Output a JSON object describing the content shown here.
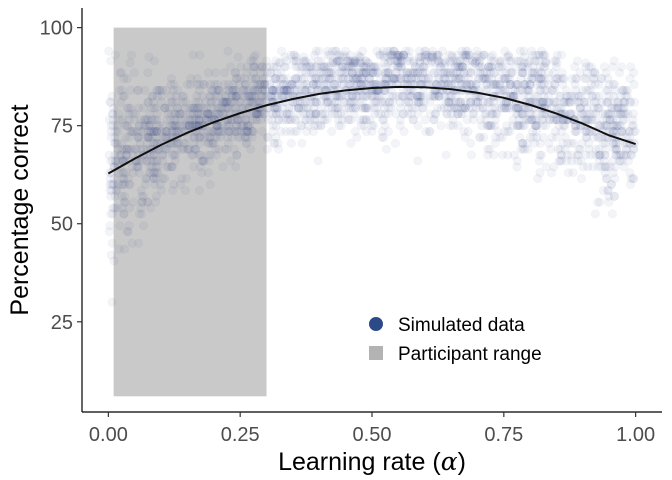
{
  "chart_data": {
    "type": "scatter",
    "title": "",
    "xlabel": "Learning rate (",
    "xlabel_symbol": "α",
    "xlabel_suffix": ")",
    "ylabel": "Percentage correct",
    "xlim": [
      -0.05,
      1.05
    ],
    "ylim": [
      2,
      105
    ],
    "x_ticks": [
      0,
      0.25,
      0.5,
      0.75,
      1
    ],
    "x_tick_labels": [
      "0.00",
      "0.25",
      "0.50",
      "0.75",
      "1.00"
    ],
    "y_ticks": [
      25,
      50,
      75,
      100
    ],
    "y_tick_labels": [
      "25",
      "50",
      "75",
      "100"
    ],
    "grid": false,
    "legend_position": "bottom-right",
    "colors": {
      "simulated": "#2b4a87",
      "participant": "#c9c9c9",
      "participant_legend": "#b3b3b3",
      "fit": "#111111"
    },
    "participant_range": {
      "name": "Participant range",
      "x": [
        0.01,
        0.3
      ],
      "y": [
        6,
        100
      ]
    },
    "simulated": {
      "name": "Simulated data",
      "x_range": [
        0,
        1
      ],
      "y_levels_step": 1.5,
      "y_max": 94,
      "point_alpha": 0.06
    },
    "fit_curve": {
      "points": [
        [
          0.0,
          62.8
        ],
        [
          0.05,
          66.6
        ],
        [
          0.1,
          70.1
        ],
        [
          0.15,
          73.2
        ],
        [
          0.2,
          75.9
        ],
        [
          0.25,
          78.2
        ],
        [
          0.3,
          80.2
        ],
        [
          0.35,
          81.8
        ],
        [
          0.4,
          83.1
        ],
        [
          0.45,
          84.0
        ],
        [
          0.5,
          84.6
        ],
        [
          0.55,
          84.9
        ],
        [
          0.6,
          84.8
        ],
        [
          0.65,
          84.3
        ],
        [
          0.7,
          83.4
        ],
        [
          0.75,
          82.1
        ],
        [
          0.8,
          80.3
        ],
        [
          0.85,
          78.1
        ],
        [
          0.9,
          75.5
        ],
        [
          0.95,
          72.5
        ],
        [
          1.0,
          70.3
        ]
      ]
    },
    "legend": [
      {
        "label": "Simulated data",
        "shape": "circle",
        "color_key": "simulated"
      },
      {
        "label": "Participant range",
        "shape": "square",
        "color_key": "participant_legend"
      }
    ]
  }
}
